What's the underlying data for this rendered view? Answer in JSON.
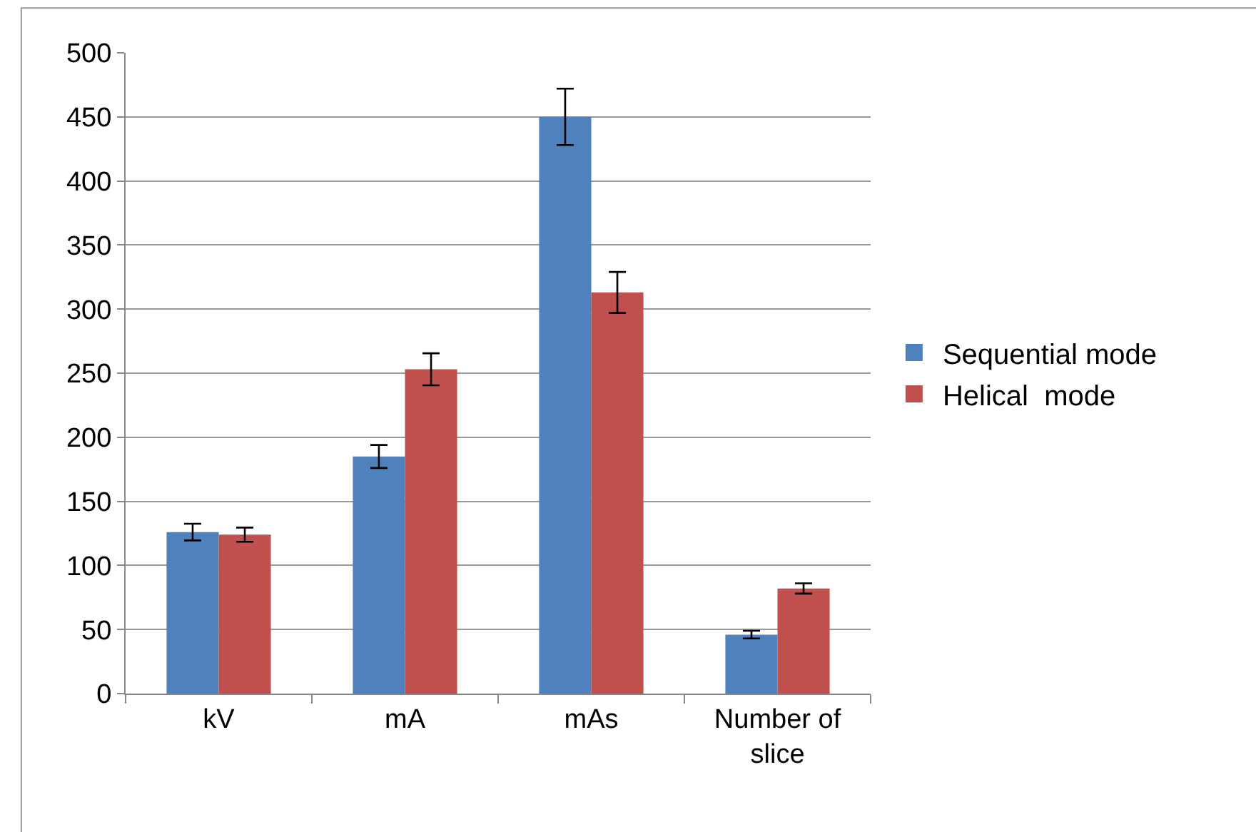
{
  "chart_data": {
    "type": "bar",
    "categories": [
      "kV",
      "mA",
      "mAs",
      "Number of slice"
    ],
    "series": [
      {
        "name": "Sequential mode",
        "color": "#4f81bd",
        "values": [
          126,
          185,
          450,
          46
        ],
        "errors": [
          6.5,
          9,
          22,
          3
        ]
      },
      {
        "name": "Helical  mode",
        "color": "#c0504d",
        "values": [
          124,
          253,
          313,
          82
        ],
        "errors": [
          5.5,
          12.5,
          16,
          4
        ]
      }
    ],
    "ylim": [
      0,
      500
    ],
    "yticks": [
      0,
      50,
      100,
      150,
      200,
      250,
      300,
      350,
      400,
      450,
      500
    ],
    "grid": "y",
    "legend": "right"
  }
}
